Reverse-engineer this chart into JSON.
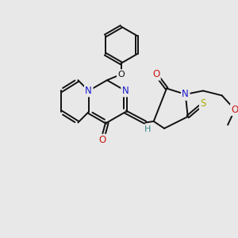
{
  "bg_color": "#e8e8e8",
  "bond_color": "#111111",
  "bond_width": 1.4,
  "atom_colors": {
    "N": "#1818cc",
    "O": "#cc1818",
    "S": "#aaaa00",
    "H": "#3a8888",
    "C": "#111111"
  },
  "fig_bg": "#e8e8e8"
}
